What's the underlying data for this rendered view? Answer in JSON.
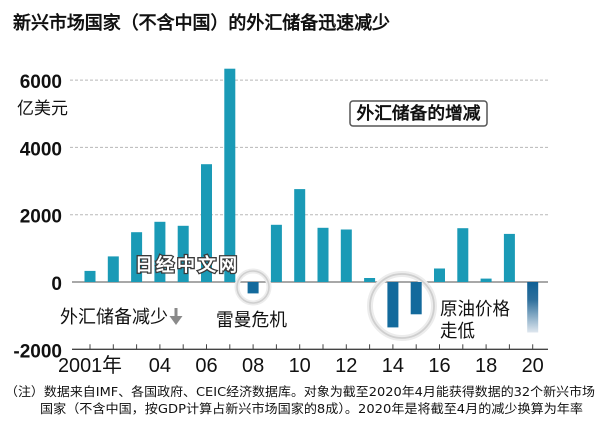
{
  "title": "新兴市场国家（不含中国）的外汇储备迅速减少",
  "watermark": "日经中文网",
  "colors": {
    "increase": "#1a9ab6",
    "decrease": "#136a9c",
    "annualized_top": "#0e5f94",
    "annualized_bottom": "#dfe7ef",
    "grid": "#b8b8b8",
    "zero_line": "#8c8c8c",
    "axis": "#444444",
    "highlight_ring": "#cfcfcf",
    "arrow": "#8a8a8a"
  },
  "annotations": {
    "decrease_label": "外汇储备减少",
    "lehman": "雷曼危机",
    "oil_line1": "原油价格",
    "oil_line2": "走低"
  },
  "footnote": {
    "line1": "（注）数据来自IMF、各国政府、CEIC经济数据库。对象为截至2020年4月能获得数据的32个新兴市场",
    "line2": "国家（不含中国，按GDP计算占新兴市场国家的8成）。2020年是将截至4月的减少换算为年率"
  },
  "chart_data": {
    "type": "bar",
    "title": "外汇储备的增减",
    "legend": "外汇储备的增减",
    "legend_position": "top-right",
    "xlabel": "",
    "ylabel": "亿美元",
    "categories": [
      "2001",
      "2002",
      "2003",
      "2004",
      "2005",
      "2006",
      "2007",
      "2008",
      "2009",
      "2010",
      "2011",
      "2012",
      "2013",
      "2014",
      "2015",
      "2016",
      "2017",
      "2018",
      "2019",
      "2020"
    ],
    "values": [
      330,
      760,
      1480,
      1790,
      1670,
      3500,
      6340,
      -340,
      1700,
      2760,
      1610,
      1560,
      120,
      -1350,
      -960,
      400,
      1600,
      100,
      1430,
      -1500
    ],
    "annualized_category": "2020",
    "highlighted_categories": [
      [
        "2008"
      ],
      [
        "2014",
        "2015"
      ]
    ],
    "ylim": [
      -2000,
      6500
    ],
    "yticks": [
      6000,
      4000,
      2000,
      0,
      -2000
    ],
    "ytick_labels": [
      "6000",
      "4000",
      "2000",
      "0",
      "-2000"
    ],
    "xtick_label_categories": [
      "2001",
      "2004",
      "2006",
      "2008",
      "2010",
      "2012",
      "2014",
      "2016",
      "2018",
      "2020"
    ],
    "xtick_labels": [
      "2001年",
      "04",
      "06",
      "08",
      "10",
      "12",
      "14",
      "16",
      "18",
      "20"
    ],
    "grid": true
  }
}
